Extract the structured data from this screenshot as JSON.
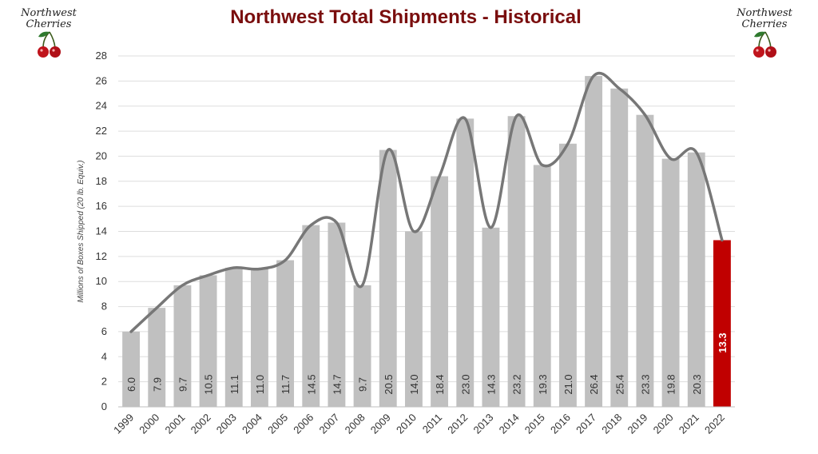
{
  "title": "Northwest Total Shipments - Historical",
  "logo": {
    "line1": "Northwest",
    "line2": "Cherries",
    "icon": "cherries-icon"
  },
  "colors": {
    "title": "#7a0e0e",
    "bar": "#c0c0c0",
    "highlight_bar": "#c00000",
    "line": "#777777",
    "gridline": "#dddddd"
  },
  "chart_data": {
    "type": "bar",
    "title": "Northwest Total Shipments - Historical",
    "xlabel": "",
    "ylabel": "Millions of Boxes Shipped (20 lb. Equiv.)",
    "ylim": [
      0,
      28
    ],
    "ytick_step": 2,
    "grid": true,
    "legend": "none",
    "categories": [
      "1999",
      "2000",
      "2001",
      "2002",
      "2003",
      "2004",
      "2005",
      "2006",
      "2007",
      "2008",
      "2009",
      "2010",
      "2011",
      "2012",
      "2013",
      "2014",
      "2015",
      "2016",
      "2017",
      "2018",
      "2019",
      "2020",
      "2021",
      "2022"
    ],
    "values": [
      6.0,
      7.9,
      9.7,
      10.5,
      11.1,
      11.0,
      11.7,
      14.5,
      14.7,
      9.7,
      20.5,
      14.0,
      18.4,
      23.0,
      14.3,
      23.2,
      19.3,
      21.0,
      26.4,
      25.4,
      23.3,
      19.8,
      20.3,
      13.3
    ],
    "labels": [
      "6.0",
      "7.9",
      "9.7",
      "10.5",
      "11.1",
      "11.0",
      "11.7",
      "14.5",
      "14.7",
      "9.7",
      "20.5",
      "14.0",
      "18.4",
      "23.0",
      "14.3",
      "23.2",
      "19.3",
      "21.0",
      "26.4",
      "25.4",
      "23.3",
      "19.8",
      "20.3",
      "13.3"
    ],
    "highlight_category": "2022",
    "smoothed_line_overlay": true
  }
}
